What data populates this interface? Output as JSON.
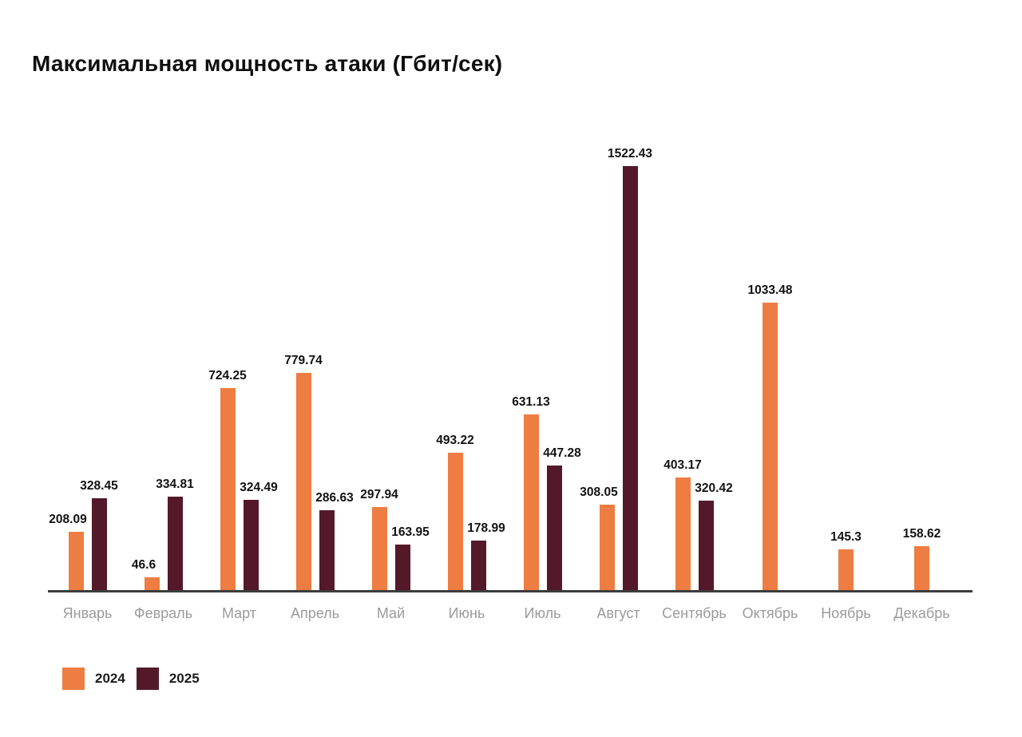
{
  "title": "Максимальная мощность атаки (Гбит/сек)",
  "chart_data": {
    "type": "bar",
    "title": "Максимальная мощность атаки (Гбит/сек)",
    "categories": [
      "Январь",
      "Февраль",
      "Март",
      "Апрель",
      "Май",
      "Июнь",
      "Июль",
      "Август",
      "Сентябрь",
      "Октябрь",
      "Ноябрь",
      "Декабрь"
    ],
    "series": [
      {
        "name": "2024",
        "color": "#ee7d43",
        "values": [
          208.09,
          46.6,
          724.25,
          779.74,
          297.94,
          493.22,
          631.13,
          308.05,
          403.17,
          1033.48,
          145.3,
          158.62
        ]
      },
      {
        "name": "2025",
        "color": "#53192a",
        "values": [
          328.45,
          334.81,
          324.49,
          286.63,
          163.95,
          178.99,
          447.28,
          1522.43,
          320.42,
          null,
          null,
          null
        ]
      }
    ],
    "ylabel": "",
    "xlabel": "",
    "ylim": [
      0,
      1522.43
    ],
    "grid": false,
    "value_labels": true,
    "legend_position": "bottom-left",
    "axis_color": "#3c3c3c",
    "category_label_color": "#9b9b9b"
  }
}
